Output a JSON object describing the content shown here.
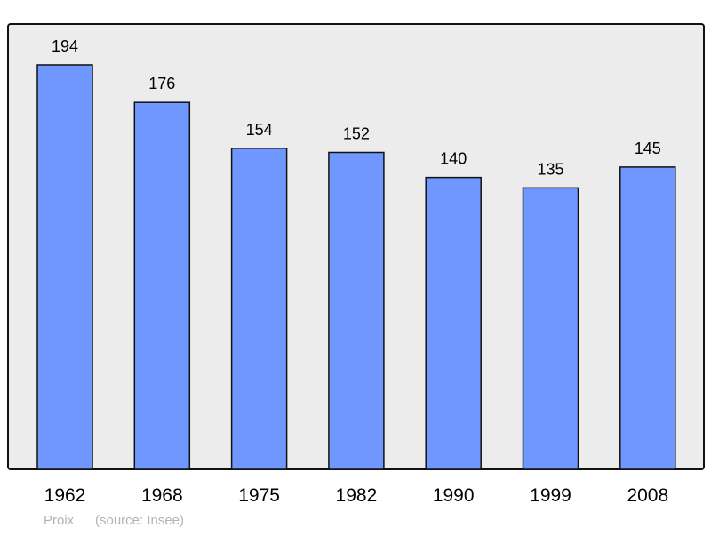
{
  "chart_data": {
    "type": "bar",
    "categories": [
      "1962",
      "1968",
      "1975",
      "1982",
      "1990",
      "1999",
      "2008"
    ],
    "values": [
      194,
      176,
      154,
      152,
      140,
      135,
      145
    ],
    "title": "",
    "xlabel": "",
    "ylabel": "",
    "ylim": [
      0,
      213.6
    ],
    "grid": false,
    "data_labels": true,
    "bar_color": "#7096ff",
    "plot_background": "#ececec"
  },
  "footer": {
    "place": "Proix",
    "source": "(source: Insee)"
  }
}
